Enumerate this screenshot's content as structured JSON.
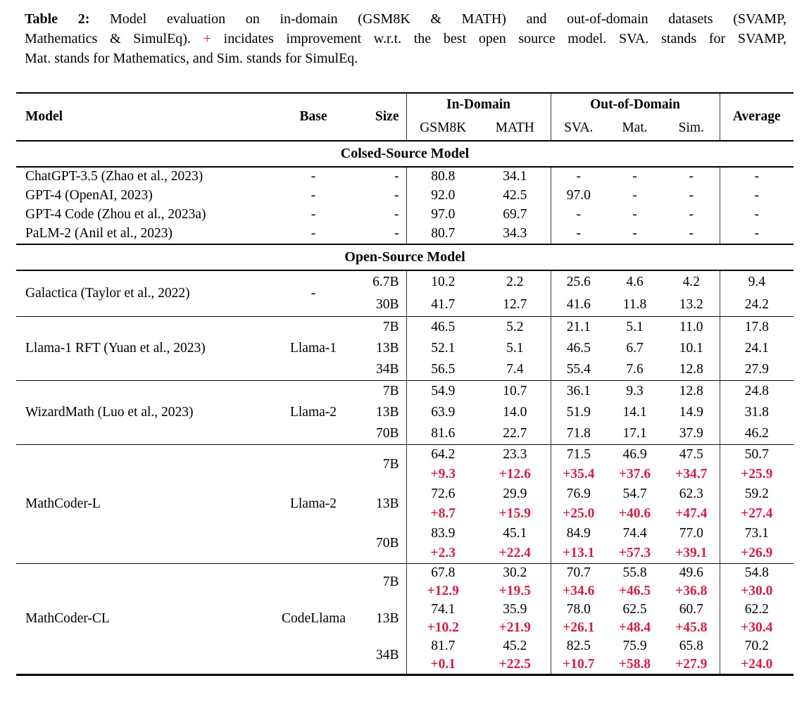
{
  "colors": {
    "delta_red": "#d41f45",
    "rule_black": "#000000"
  },
  "caption": {
    "lines": [
      {
        "segments": [
          {
            "text": "Table 2:"
          },
          {
            "text": " Model evaluation on in-domain (GSM8K & MATH) and out-of-domain datasets (SVAMP,"
          }
        ]
      },
      {
        "segments": [
          {
            "text": "Mathematics & SimulEq). "
          },
          {
            "text": "+"
          },
          {
            "text": " incidates improvement w.r.t. the best open source model. SVA. stands for SVAMP,"
          }
        ]
      },
      {
        "segments": [
          {
            "text": "Mat. stands for Mathematics, and Sim. stands for SimulEq."
          }
        ]
      }
    ]
  },
  "table": {
    "header": {
      "model": "Model",
      "base": "Base",
      "size": "Size",
      "in_domain": "In-Domain",
      "out_of_domain": "Out-of-Domain",
      "average": "Average",
      "sub": [
        "GSM8K",
        "MATH",
        "SVA.",
        "Mat.",
        "Sim."
      ]
    },
    "sections": [
      {
        "title": "Colsed-Source Model",
        "divider_between_groups": false,
        "groups": [
          {
            "model": "ChatGPT-3.5 (Zhao et al., 2023)",
            "base": "-",
            "rows": [
              {
                "size": "-",
                "values": [
                  "80.8",
                  "34.1",
                  "-",
                  "-",
                  "-",
                  "-"
                ]
              }
            ]
          },
          {
            "model": "GPT-4 (OpenAI, 2023)",
            "base": "-",
            "rows": [
              {
                "size": "-",
                "values": [
                  "92.0",
                  "42.5",
                  "97.0",
                  "-",
                  "-",
                  "-"
                ]
              }
            ]
          },
          {
            "model": "GPT-4 Code (Zhou et al., 2023a)",
            "base": "-",
            "rows": [
              {
                "size": "-",
                "values": [
                  "97.0",
                  "69.7",
                  "-",
                  "-",
                  "-",
                  "-"
                ]
              }
            ]
          },
          {
            "model": "PaLM-2 (Anil et al., 2023)",
            "base": "-",
            "rows": [
              {
                "size": "-",
                "values": [
                  "80.7",
                  "34.3",
                  "-",
                  "-",
                  "-",
                  "-"
                ]
              }
            ]
          }
        ]
      },
      {
        "title": "Open-Source Model",
        "divider_between_groups": true,
        "groups": [
          {
            "model": "Galactica (Taylor et al., 2022)",
            "base": "-",
            "rows": [
              {
                "size": "6.7B",
                "values": [
                  "10.2",
                  "2.2",
                  "25.6",
                  "4.6",
                  "4.2",
                  "9.4"
                ]
              },
              {
                "size": "30B",
                "values": [
                  "41.7",
                  "12.7",
                  "41.6",
                  "11.8",
                  "13.2",
                  "24.2"
                ]
              }
            ]
          },
          {
            "model": "Llama-1 RFT (Yuan et al., 2023)",
            "base": "Llama-1",
            "rows": [
              {
                "size": "7B",
                "values": [
                  "46.5",
                  "5.2",
                  "21.1",
                  "5.1",
                  "11.0",
                  "17.8"
                ]
              },
              {
                "size": "13B",
                "values": [
                  "52.1",
                  "5.1",
                  "46.5",
                  "6.7",
                  "10.1",
                  "24.1"
                ]
              },
              {
                "size": "34B",
                "values": [
                  "56.5",
                  "7.4",
                  "55.4",
                  "7.6",
                  "12.8",
                  "27.9"
                ]
              }
            ]
          },
          {
            "model": "WizardMath (Luo et al., 2023)",
            "base": "Llama-2",
            "rows": [
              {
                "size": "7B",
                "values": [
                  "54.9",
                  "10.7",
                  "36.1",
                  "9.3",
                  "12.8",
                  "24.8"
                ]
              },
              {
                "size": "13B",
                "values": [
                  "63.9",
                  "14.0",
                  "51.9",
                  "14.1",
                  "14.9",
                  "31.8"
                ]
              },
              {
                "size": "70B",
                "values": [
                  "81.6",
                  "22.7",
                  "71.8",
                  "17.1",
                  "37.9",
                  "46.2"
                ]
              }
            ]
          },
          {
            "model": "MathCoder-L",
            "base": "Llama-2",
            "rows": [
              {
                "size": "7B",
                "values": [
                  "64.2",
                  "23.3",
                  "71.5",
                  "46.9",
                  "47.5",
                  "50.7"
                ],
                "delta": [
                  "+9.3",
                  "+12.6",
                  "+35.4",
                  "+37.6",
                  "+34.7",
                  "+25.9"
                ]
              },
              {
                "size": "13B",
                "values": [
                  "72.6",
                  "29.9",
                  "76.9",
                  "54.7",
                  "62.3",
                  "59.2"
                ],
                "delta": [
                  "+8.7",
                  "+15.9",
                  "+25.0",
                  "+40.6",
                  "+47.4",
                  "+27.4"
                ]
              },
              {
                "size": "70B",
                "values": [
                  "83.9",
                  "45.1",
                  "84.9",
                  "74.4",
                  "77.0",
                  "73.1"
                ],
                "delta": [
                  "+2.3",
                  "+22.4",
                  "+13.1",
                  "+57.3",
                  "+39.1",
                  "+26.9"
                ]
              }
            ]
          },
          {
            "model": "MathCoder-CL",
            "base": "CodeLlama",
            "rows": [
              {
                "size": "7B",
                "values": [
                  "67.8",
                  "30.2",
                  "70.7",
                  "55.8",
                  "49.6",
                  "54.8"
                ],
                "delta": [
                  "+12.9",
                  "+19.5",
                  "+34.6",
                  "+46.5",
                  "+36.8",
                  "+30.0"
                ]
              },
              {
                "size": "13B",
                "values": [
                  "74.1",
                  "35.9",
                  "78.0",
                  "62.5",
                  "60.7",
                  "62.2"
                ],
                "delta": [
                  "+10.2",
                  "+21.9",
                  "+26.1",
                  "+48.4",
                  "+45.8",
                  "+30.4"
                ]
              },
              {
                "size": "34B",
                "values": [
                  "81.7",
                  "45.2",
                  "82.5",
                  "75.9",
                  "65.8",
                  "70.2"
                ],
                "delta": [
                  "+0.1",
                  "+22.5",
                  "+10.7",
                  "+58.8",
                  "+27.9",
                  "+24.0"
                ]
              }
            ]
          }
        ]
      }
    ]
  }
}
